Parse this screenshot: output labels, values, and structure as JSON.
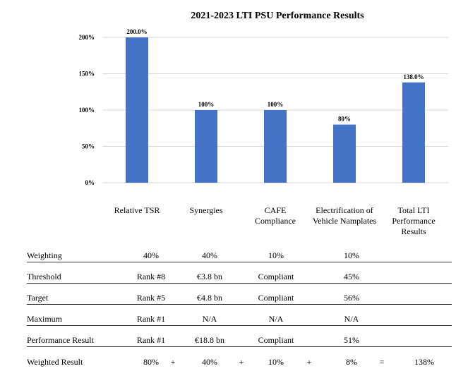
{
  "chart_data": {
    "type": "bar",
    "title": "2021-2023 LTI PSU Performance Results",
    "categories": [
      "Relative TSR",
      "Synergies",
      "CAFE\nCompliance",
      "Electrification of\nVehicle Namplates",
      "Total LTI\nPerformance\nResults"
    ],
    "values": [
      200.0,
      100,
      100,
      80,
      138.0
    ],
    "data_labels": [
      "200.0%",
      "100%",
      "100%",
      "80%",
      "138.0%"
    ],
    "ylim": [
      0,
      200
    ],
    "yticks": [
      0,
      50,
      100,
      150,
      200
    ],
    "ytick_labels": [
      "0%",
      "50%",
      "100%",
      "150%",
      "200%"
    ],
    "grid": true,
    "legend": "none",
    "bar_color": "#4472C4"
  },
  "table": {
    "rows": [
      {
        "label": "Weighting",
        "cells": [
          "40%",
          "40%",
          "10%",
          "10%"
        ]
      },
      {
        "label": "Threshold",
        "cells": [
          "Rank #8",
          "€3.8 bn",
          "Compliant",
          "45%"
        ]
      },
      {
        "label": "Target",
        "cells": [
          "Rank #5",
          "€4.8 bn",
          "Compliant",
          "56%"
        ]
      },
      {
        "label": "Maximum",
        "cells": [
          "Rank #1",
          "N/A",
          "N/A",
          "N/A"
        ]
      },
      {
        "label": "Performance Result",
        "cells": [
          "Rank #1",
          "€18.8 bn",
          "Compliant",
          "51%"
        ]
      }
    ],
    "weighted": {
      "label": "Weighted Result",
      "cells": [
        "80%",
        "40%",
        "10%",
        "8%"
      ],
      "operators": [
        "+",
        "+",
        "+",
        "="
      ],
      "total": "138%"
    }
  }
}
